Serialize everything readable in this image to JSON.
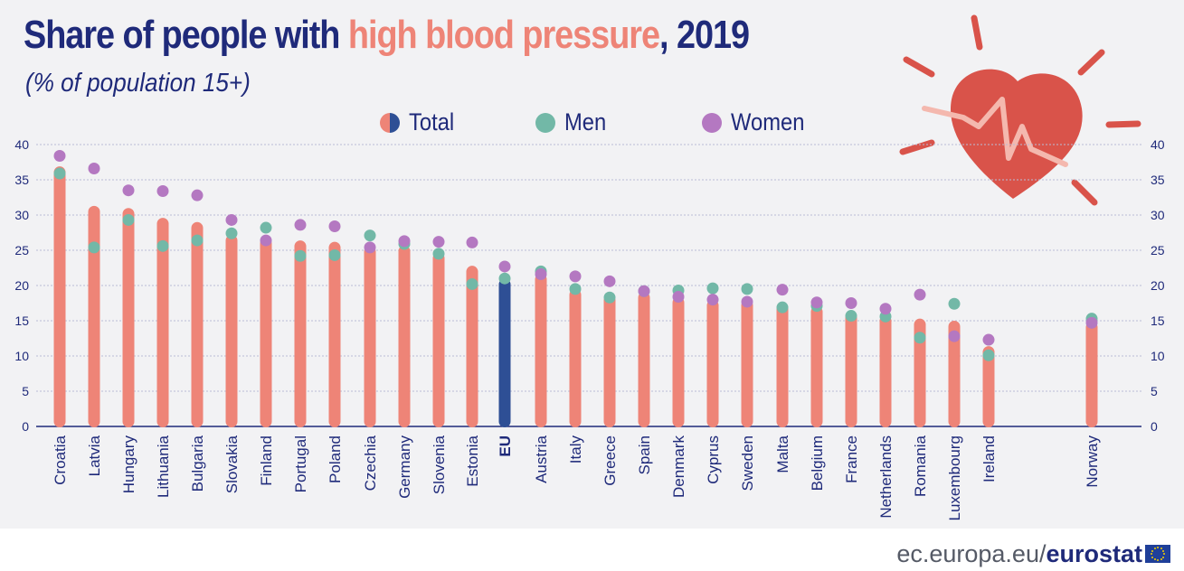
{
  "header": {
    "title_prefix": "Share of people with ",
    "title_highlight": "high blood pressure",
    "title_suffix": ", 2019",
    "subtitle": "(% of population 15+)"
  },
  "legend": {
    "total": "Total",
    "men": "Men",
    "women": "Women"
  },
  "footer": {
    "domain": "ec.europa.eu/",
    "brand": "eurostat"
  },
  "colors": {
    "total": "#ee8477",
    "eu_total": "#2e4f95",
    "men": "#72b8a7",
    "women": "#b478c1",
    "text": "#1f2a7a",
    "heart": "#d9534a"
  },
  "icons": {
    "illustration": "heart-pulse-icon",
    "flag": "eu-flag-icon"
  },
  "chart_data": {
    "type": "bar",
    "title": "Share of people with high blood pressure, 2019",
    "subtitle": "(% of population 15+)",
    "ylim": [
      0,
      40
    ],
    "yticks": [
      0,
      5,
      10,
      15,
      20,
      25,
      30,
      35,
      40
    ],
    "grid": true,
    "legend_position": "top",
    "categories": [
      "Croatia",
      "Latvia",
      "Hungary",
      "Lithuania",
      "Bulgaria",
      "Slovakia",
      "Finland",
      "Portugal",
      "Poland",
      "Czechia",
      "Germany",
      "Slovenia",
      "Estonia",
      "EU",
      "Austria",
      "Italy",
      "Greece",
      "Spain",
      "Denmark",
      "Cyprus",
      "Sweden",
      "Malta",
      "Belgium",
      "France",
      "Netherlands",
      "Romania",
      "Luxembourg",
      "Ireland",
      "Norway"
    ],
    "highlight_category": "EU",
    "series": [
      {
        "name": "Total",
        "style": "bar",
        "values": [
          36.9,
          31.3,
          31.0,
          29.6,
          29.0,
          27.2,
          26.8,
          26.4,
          26.2,
          25.6,
          25.7,
          24.7,
          22.8,
          21.0,
          21.7,
          19.5,
          18.7,
          19.1,
          18.4,
          18.0,
          18.0,
          17.4,
          17.1,
          16.2,
          15.8,
          15.3,
          15.0,
          11.4,
          14.9
        ]
      },
      {
        "name": "Men",
        "style": "dot",
        "values": [
          35.9,
          25.4,
          29.3,
          25.6,
          26.4,
          27.4,
          28.2,
          24.2,
          24.3,
          27.1,
          25.9,
          24.5,
          20.2,
          21.0,
          22.0,
          19.5,
          18.3,
          19.2,
          19.3,
          19.6,
          19.5,
          16.9,
          17.1,
          15.7,
          15.6,
          12.6,
          17.4,
          10.1,
          15.3
        ]
      },
      {
        "name": "Women",
        "style": "dot",
        "values": [
          38.4,
          36.6,
          33.5,
          33.4,
          32.8,
          29.3,
          26.4,
          28.6,
          28.4,
          25.4,
          26.3,
          26.2,
          26.1,
          22.7,
          21.6,
          21.3,
          20.6,
          19.2,
          18.4,
          18.0,
          17.7,
          19.4,
          17.6,
          17.5,
          16.7,
          18.7,
          12.8,
          12.3,
          14.7
        ]
      }
    ]
  }
}
